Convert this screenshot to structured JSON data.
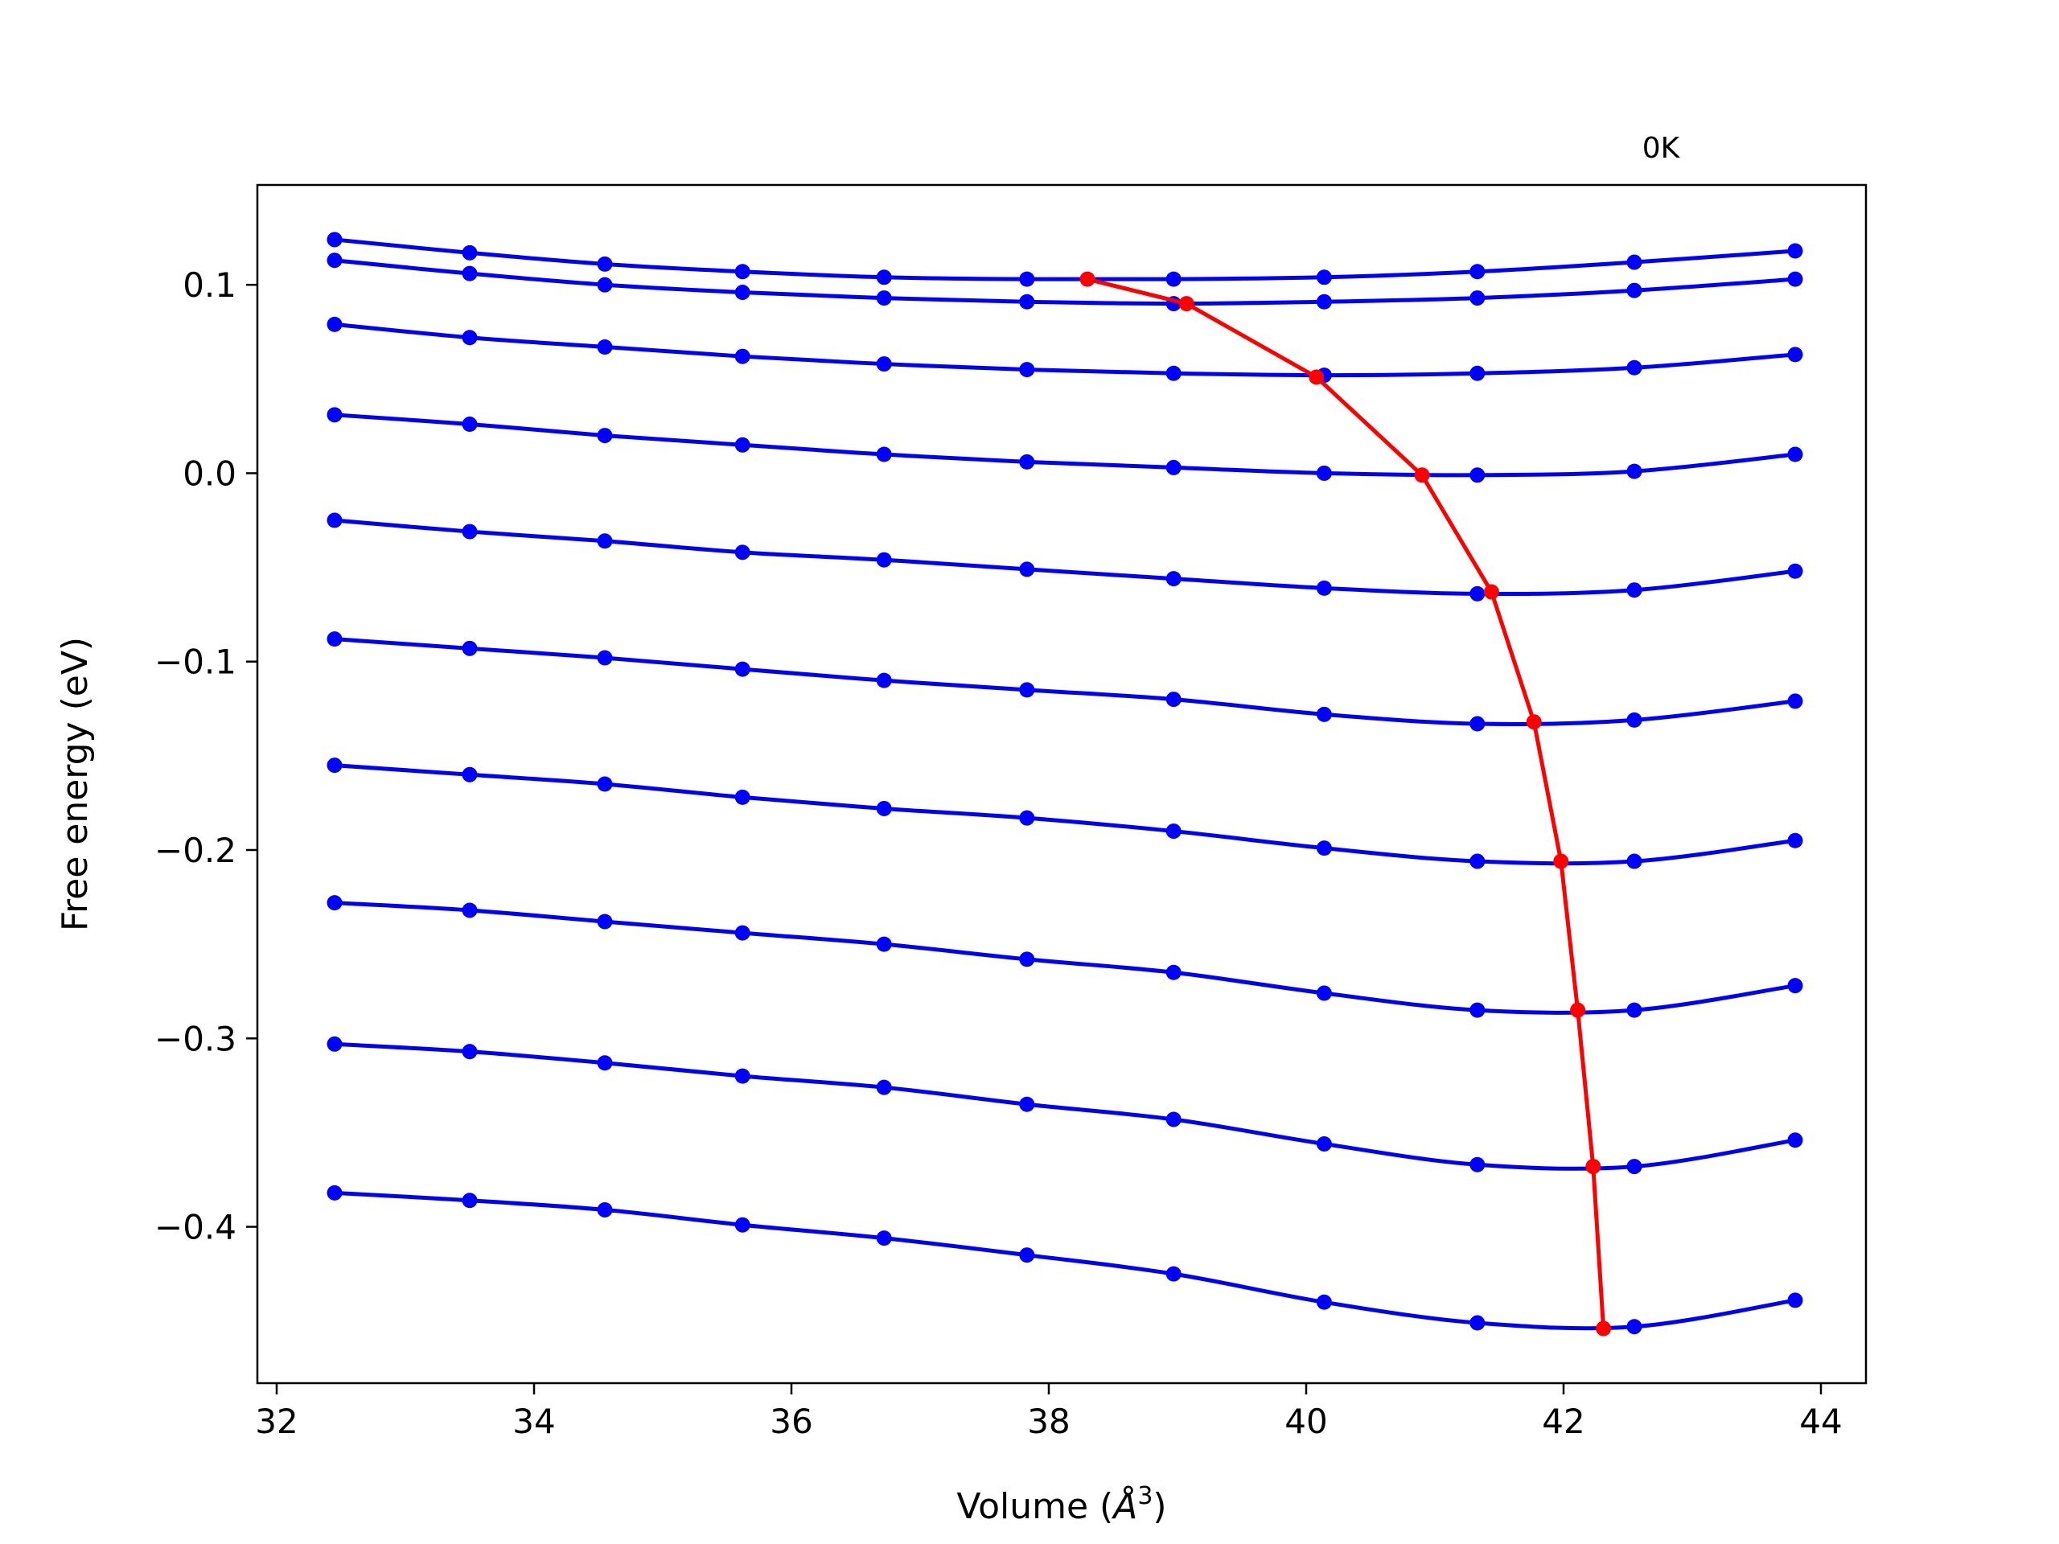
{
  "chart_data": {
    "type": "line",
    "annotation": "0K",
    "xlabel": "Volume (",
    "xlabel_symbol": "Å",
    "xlabel_exponent": "3",
    "xlabel_close": ")",
    "ylabel": "Free energy (eV)",
    "xlim": [
      31.85,
      44.35
    ],
    "ylim": [
      -0.483,
      0.153
    ],
    "xticks": [
      32,
      34,
      36,
      38,
      40,
      42,
      44
    ],
    "xtick_labels": [
      "32",
      "34",
      "36",
      "38",
      "40",
      "42",
      "44"
    ],
    "yticks": [
      0.1,
      0.0,
      -0.1,
      -0.2,
      -0.3,
      -0.4
    ],
    "ytick_labels": [
      "0.1",
      "0.0",
      "−0.1",
      "−0.2",
      "−0.3",
      "−0.4"
    ],
    "grid": false,
    "colors": {
      "curve": "#0000ff",
      "minimum_path": "#ff0000",
      "frame": "#000000"
    },
    "x": [
      32.45,
      33.5,
      34.55,
      35.62,
      36.72,
      37.83,
      38.97,
      40.14,
      41.33,
      42.55,
      43.8
    ],
    "series": [
      {
        "values": [
          0.124,
          0.117,
          0.111,
          0.107,
          0.104,
          0.103,
          0.103,
          0.104,
          0.107,
          0.112,
          0.118
        ]
      },
      {
        "values": [
          0.113,
          0.106,
          0.1,
          0.096,
          0.093,
          0.091,
          0.09,
          0.091,
          0.093,
          0.097,
          0.103
        ]
      },
      {
        "values": [
          0.079,
          0.072,
          0.067,
          0.062,
          0.058,
          0.055,
          0.053,
          0.052,
          0.053,
          0.056,
          0.063
        ]
      },
      {
        "values": [
          0.031,
          0.026,
          0.02,
          0.015,
          0.01,
          0.006,
          0.003,
          0.0,
          -0.001,
          0.001,
          0.01
        ]
      },
      {
        "values": [
          -0.025,
          -0.031,
          -0.036,
          -0.042,
          -0.046,
          -0.051,
          -0.056,
          -0.061,
          -0.064,
          -0.062,
          -0.052
        ]
      },
      {
        "values": [
          -0.088,
          -0.093,
          -0.098,
          -0.104,
          -0.11,
          -0.115,
          -0.12,
          -0.128,
          -0.133,
          -0.131,
          -0.121
        ]
      },
      {
        "values": [
          -0.155,
          -0.16,
          -0.165,
          -0.172,
          -0.178,
          -0.183,
          -0.19,
          -0.199,
          -0.206,
          -0.206,
          -0.195
        ]
      },
      {
        "values": [
          -0.228,
          -0.232,
          -0.238,
          -0.244,
          -0.25,
          -0.258,
          -0.265,
          -0.276,
          -0.285,
          -0.285,
          -0.272
        ]
      },
      {
        "values": [
          -0.303,
          -0.307,
          -0.313,
          -0.32,
          -0.326,
          -0.335,
          -0.343,
          -0.356,
          -0.367,
          -0.368,
          -0.354
        ]
      },
      {
        "values": [
          -0.382,
          -0.386,
          -0.391,
          -0.399,
          -0.406,
          -0.415,
          -0.425,
          -0.44,
          -0.451,
          -0.453,
          -0.439
        ]
      }
    ],
    "minimum_path": {
      "x": [
        38.3,
        39.07,
        40.08,
        40.9,
        41.44,
        41.77,
        41.98,
        42.11,
        42.23,
        42.31
      ],
      "y": [
        0.103,
        0.09,
        0.051,
        -0.001,
        -0.063,
        -0.132,
        -0.206,
        -0.285,
        -0.368,
        -0.454
      ]
    }
  }
}
